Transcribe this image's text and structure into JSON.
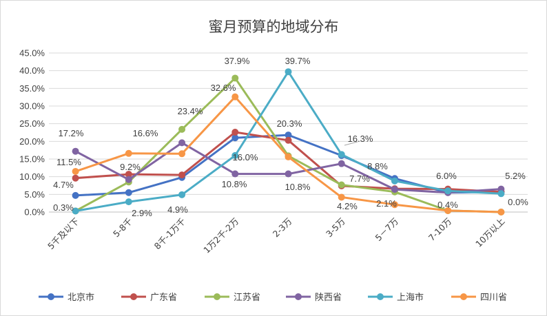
{
  "chart_data": {
    "type": "line",
    "title": "蜜月预算的地域分布",
    "xlabel": "",
    "ylabel": "",
    "ylim": [
      0,
      45
    ],
    "yticks": [
      "0.0%",
      "5.0%",
      "10.0%",
      "15.0%",
      "20.0%",
      "25.0%",
      "30.0%",
      "35.0%",
      "40.0%",
      "45.0%"
    ],
    "grid": true,
    "legend_position": "bottom",
    "categories": [
      "5千及以下",
      "5-8千",
      "8千-1万千",
      "1万2千-2万",
      "2-3万",
      "3-5万",
      "5－7万",
      "7-10万",
      "10万以上"
    ],
    "series": [
      {
        "name": "北京市",
        "color": "#4472C4",
        "values": [
          4.7,
          5.5,
          9.8,
          21.0,
          21.8,
          16.0,
          9.5,
          5.5,
          5.7
        ]
      },
      {
        "name": "广东省",
        "color": "#C0504D",
        "values": [
          9.6,
          10.7,
          10.5,
          22.6,
          20.3,
          7.4,
          6.6,
          6.5,
          5.7
        ]
      },
      {
        "name": "江苏省",
        "color": "#9BBB59",
        "values": [
          0.3,
          8.5,
          23.4,
          37.9,
          15.9,
          7.7,
          5.7,
          0.4,
          0.0
        ]
      },
      {
        "name": "陕西省",
        "color": "#8064A2",
        "values": [
          17.2,
          9.2,
          19.6,
          10.8,
          10.8,
          13.7,
          6.4,
          5.5,
          6.5
        ]
      },
      {
        "name": "上海市",
        "color": "#4BACC6",
        "values": [
          0.3,
          2.9,
          4.9,
          16.0,
          39.7,
          16.3,
          8.8,
          6.0,
          5.2
        ]
      },
      {
        "name": "四川省",
        "color": "#F79646",
        "values": [
          11.5,
          16.6,
          16.5,
          32.6,
          15.6,
          4.2,
          2.1,
          0.4,
          0.0
        ]
      }
    ],
    "data_labels": [
      {
        "text": "17.2%"
      },
      {
        "text": "16.6%"
      },
      {
        "text": "23.4%"
      },
      {
        "text": "37.9%"
      },
      {
        "text": "39.7%"
      },
      {
        "text": "32.6%"
      },
      {
        "text": "20.3%"
      },
      {
        "text": "16.3%"
      },
      {
        "text": "11.5%"
      },
      {
        "text": "9.2%"
      },
      {
        "text": "16.0%"
      },
      {
        "text": "8.8%"
      },
      {
        "text": "6.0%"
      },
      {
        "text": "5.2%"
      },
      {
        "text": "4.7%"
      },
      {
        "text": "10.8%"
      },
      {
        "text": "10.8%"
      },
      {
        "text": "7.7%"
      },
      {
        "text": "0.3%"
      },
      {
        "text": "2.9%"
      },
      {
        "text": "4.9%"
      },
      {
        "text": "4.2%"
      },
      {
        "text": "2.1%"
      },
      {
        "text": "0.4%"
      },
      {
        "text": "0.0%"
      }
    ]
  }
}
